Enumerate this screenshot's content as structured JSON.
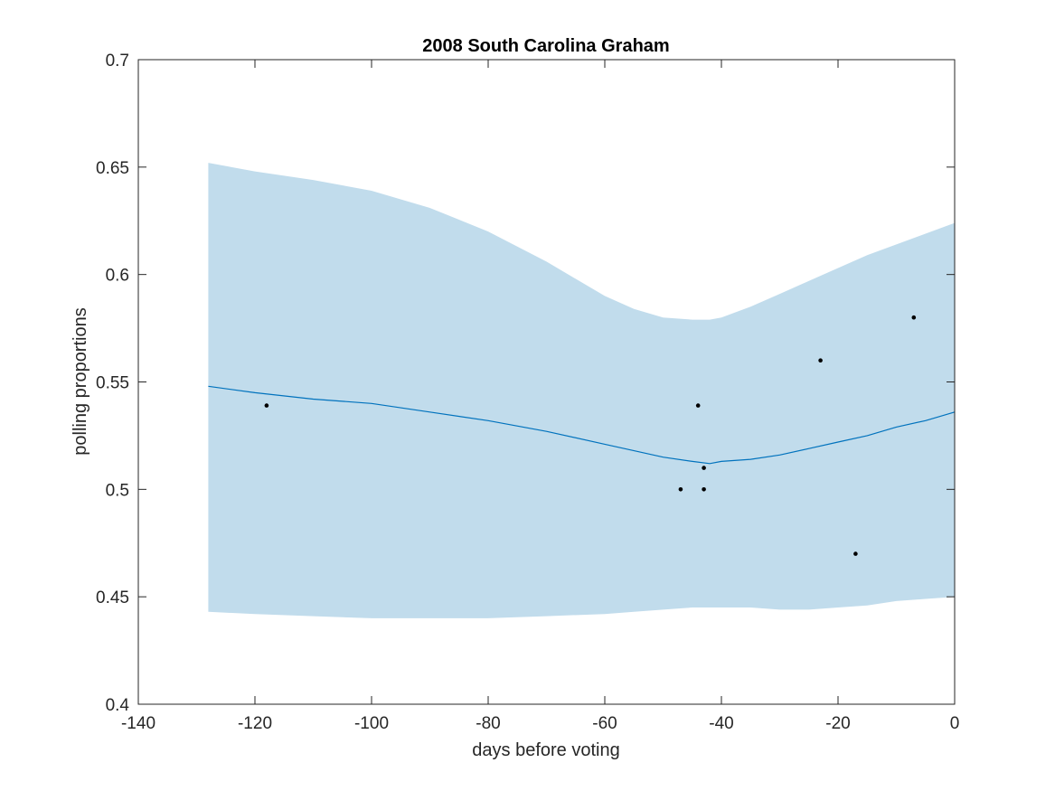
{
  "chart_data": {
    "type": "line",
    "title": "2008 South Carolina Graham",
    "xlabel": "days before voting",
    "ylabel": "polling proportions",
    "xlim": [
      -140,
      0
    ],
    "ylim": [
      0.4,
      0.7
    ],
    "xticks": [
      -140,
      -120,
      -100,
      -80,
      -60,
      -40,
      -20,
      0
    ],
    "yticks": [
      0.4,
      0.45,
      0.5,
      0.55,
      0.6,
      0.65,
      0.7
    ],
    "xtick_labels": [
      "-140",
      "-120",
      "-100",
      "-80",
      "-60",
      "-40",
      "-20",
      "0"
    ],
    "ytick_labels": [
      "0.4",
      "0.45",
      "0.5",
      "0.55",
      "0.6",
      "0.65",
      "0.7"
    ],
    "grid": false,
    "colors": {
      "band": "#c1dcec",
      "line": "#0072bd",
      "points": "#000000",
      "axes": "#262626"
    },
    "series": [
      {
        "kind": "band",
        "x": [
          -128,
          -120,
          -110,
          -100,
          -90,
          -80,
          -70,
          -60,
          -55,
          -50,
          -45,
          -42,
          -40,
          -35,
          -30,
          -25,
          -20,
          -15,
          -10,
          -5,
          0
        ],
        "upper": [
          0.652,
          0.648,
          0.644,
          0.639,
          0.631,
          0.62,
          0.606,
          0.59,
          0.584,
          0.58,
          0.579,
          0.579,
          0.58,
          0.585,
          0.591,
          0.597,
          0.603,
          0.609,
          0.614,
          0.619,
          0.624
        ],
        "lower": [
          0.443,
          0.442,
          0.441,
          0.44,
          0.44,
          0.44,
          0.441,
          0.442,
          0.443,
          0.444,
          0.445,
          0.445,
          0.445,
          0.445,
          0.444,
          0.444,
          0.445,
          0.446,
          0.448,
          0.449,
          0.45
        ]
      },
      {
        "kind": "line",
        "x": [
          -128,
          -120,
          -110,
          -100,
          -90,
          -80,
          -70,
          -60,
          -55,
          -50,
          -45,
          -42,
          -40,
          -35,
          -30,
          -25,
          -20,
          -15,
          -10,
          -5,
          0
        ],
        "y": [
          0.548,
          0.545,
          0.542,
          0.54,
          0.536,
          0.532,
          0.527,
          0.521,
          0.518,
          0.515,
          0.513,
          0.512,
          0.513,
          0.514,
          0.516,
          0.519,
          0.522,
          0.525,
          0.529,
          0.532,
          0.536
        ]
      },
      {
        "kind": "scatter",
        "x": [
          -118,
          -47,
          -44,
          -43,
          -43,
          -23,
          -17,
          -7
        ],
        "y": [
          0.539,
          0.5,
          0.539,
          0.51,
          0.5,
          0.56,
          0.47,
          0.58
        ]
      }
    ]
  }
}
